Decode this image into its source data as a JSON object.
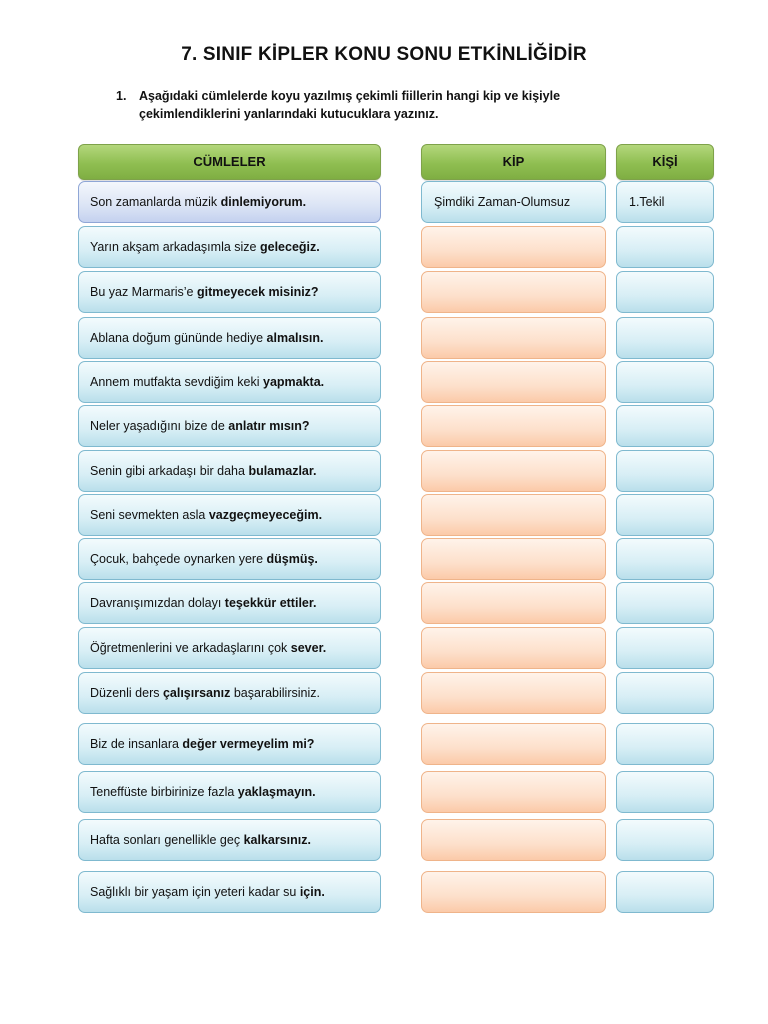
{
  "title": "7. SINIF KİPLER KONU SONU ETKİNLİĞİDİR",
  "instruction": {
    "number": "1.",
    "line1": "Aşağıdaki cümlelerde koyu yazılmış çekimli fiillerin hangi kip ve kişiyle",
    "line2": "çekimlendiklerini yanlarındaki kutucuklara yazınız."
  },
  "headers": {
    "cumleler": "CÜMLELER",
    "kip": "KİP",
    "kisi": "KİŞİ"
  },
  "rows": [
    {
      "pre": "Son zamanlarda müzik ",
      "bold": "dinlemiyorum.",
      "post": "",
      "kip": "Şimdiki Zaman-Olumsuz",
      "kisi": "1.Tekil"
    },
    {
      "pre": "Yarın akşam arkadaşımla size ",
      "bold": "geleceğiz.",
      "post": "",
      "kip": "",
      "kisi": ""
    },
    {
      "pre": "Bu yaz Marmaris’e ",
      "bold": "gitmeyecek misiniz?",
      "post": "",
      "kip": "",
      "kisi": ""
    },
    {
      "pre": "Ablana doğum gününde hediye ",
      "bold": "almalısın.",
      "post": "",
      "kip": "",
      "kisi": ""
    },
    {
      "pre": "Annem mutfakta sevdiğim keki ",
      "bold": "yapmakta.",
      "post": "",
      "kip": "",
      "kisi": ""
    },
    {
      "pre": "Neler yaşadığını bize de ",
      "bold": "anlatır mısın?",
      "post": "",
      "kip": "",
      "kisi": ""
    },
    {
      "pre": "Senin gibi arkadaşı bir daha ",
      "bold": "bulamazlar.",
      "post": "",
      "kip": "",
      "kisi": ""
    },
    {
      "pre": "Seni sevmekten asla ",
      "bold": "vazgeçmeyeceğim.",
      "post": "",
      "kip": "",
      "kisi": ""
    },
    {
      "pre": "Çocuk, bahçede oynarken yere ",
      "bold": "düşmüş.",
      "post": "",
      "kip": "",
      "kisi": ""
    },
    {
      "pre": "Davranışımızdan dolayı ",
      "bold": "teşekkür ettiler.",
      "post": "",
      "kip": "",
      "kisi": ""
    },
    {
      "pre": "Öğretmenlerini ve arkadaşlarını çok ",
      "bold": "sever.",
      "post": "",
      "kip": "",
      "kisi": ""
    },
    {
      "pre": "Düzenli ders ",
      "bold": "çalışırsanız",
      "post": " başarabilirsiniz.",
      "kip": "",
      "kisi": ""
    },
    {
      "pre": "Biz de insanlara ",
      "bold": "değer vermeyelim mi?",
      "post": "",
      "kip": "",
      "kisi": ""
    },
    {
      "pre": "Teneffüste birbirinize fazla ",
      "bold": "yaklaşmayın.",
      "post": "",
      "kip": "",
      "kisi": ""
    },
    {
      "pre": "Hafta sonları genellikle geç ",
      "bold": "kalkarsınız.",
      "post": "",
      "kip": "",
      "kisi": ""
    },
    {
      "pre": "Sağlıklı bir yaşam için yeteri kadar su ",
      "bold": "için.",
      "post": "",
      "kip": "",
      "kisi": ""
    }
  ]
}
